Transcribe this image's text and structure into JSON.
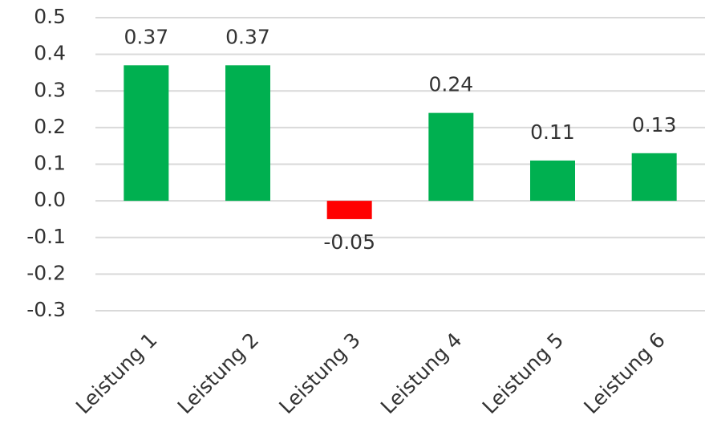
{
  "chart_data": {
    "type": "bar",
    "categories": [
      "Leistung 1",
      "Leistung 2",
      "Leistung 3",
      "Leistung 4",
      "Leistung 5",
      "Leistung 6"
    ],
    "values": [
      0.37,
      0.37,
      -0.05,
      0.24,
      0.11,
      0.13
    ],
    "colors": [
      "#00b050",
      "#00b050",
      "#ff0000",
      "#00b050",
      "#00b050",
      "#00b050"
    ],
    "ylim": [
      -0.3,
      0.5
    ],
    "yticks": [
      -0.3,
      -0.2,
      -0.1,
      {
        "value": 0,
        "label": "0.0"
      },
      0.1,
      0.2,
      0.3,
      0.4,
      0.5
    ],
    "grid": true
  }
}
